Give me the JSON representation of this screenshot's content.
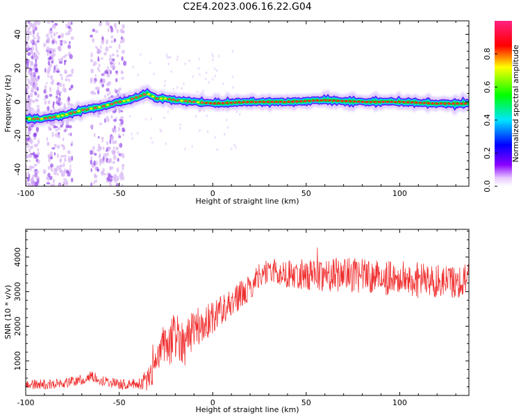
{
  "title": "C2E4.2023.006.16.22.G04",
  "colors": {
    "snr_line": "#f03030",
    "axis": "#000000",
    "scatter_light": "#d9b8f5",
    "scatter_dark": "#7a1fe6",
    "colorbar_stops": [
      "#ffffff",
      "#e9c8ff",
      "#8a00ff",
      "#0000ff",
      "#00e5ff",
      "#00ff00",
      "#ffff00",
      "#ff0000",
      "#ff2080"
    ]
  },
  "chart_data": [
    {
      "type": "heatmap",
      "xlabel": "Height of straight line (km)",
      "ylabel": "Frequency (Hz)",
      "xlim": [
        -100,
        137
      ],
      "ylim": [
        -50,
        48
      ],
      "xticks": [
        -100,
        -50,
        0,
        50,
        100
      ],
      "yticks": [
        -40,
        -20,
        0,
        20,
        40
      ],
      "grid": false,
      "colorbar": {
        "label": "Normalized spectral amplitude",
        "range": [
          0,
          1
        ],
        "ticks": [
          0.0,
          0.2,
          0.4,
          0.6,
          0.8
        ]
      },
      "ridge": {
        "x": [
          -100,
          -90,
          -80,
          -70,
          -60,
          -50,
          -45,
          -40,
          -35,
          -30,
          -25,
          -20,
          -10,
          0,
          20,
          40,
          60,
          80,
          100,
          120,
          137
        ],
        "frequency": [
          -10,
          -10,
          -8,
          -5,
          -3,
          0,
          1,
          3,
          5,
          2,
          2,
          1,
          0,
          -1,
          0,
          0,
          1,
          0,
          0,
          -1,
          -1
        ]
      },
      "scatter_bands_x": [
        [
          -100,
          -93
        ],
        [
          -90,
          -75
        ],
        [
          -65,
          -47
        ]
      ]
    },
    {
      "type": "line",
      "xlabel": "Height of straight line (km)",
      "ylabel": "SNR (10 * v/v)",
      "xlim": [
        -100,
        137
      ],
      "ylim": [
        0,
        4800
      ],
      "xticks": [
        -100,
        -50,
        0,
        50,
        100
      ],
      "yticks": [
        1000,
        2000,
        3000,
        4000
      ],
      "grid": false,
      "trend": {
        "x": [
          -100,
          -90,
          -80,
          -70,
          -65,
          -60,
          -50,
          -40,
          -35,
          -30,
          -27,
          -25,
          -20,
          -15,
          -10,
          -5,
          0,
          5,
          10,
          15,
          20,
          25,
          30,
          40,
          50,
          60,
          70,
          80,
          90,
          100,
          110,
          120,
          130,
          137
        ],
        "y": [
          300,
          320,
          350,
          450,
          550,
          450,
          320,
          330,
          450,
          900,
          1500,
          1300,
          1800,
          1500,
          2000,
          2000,
          2300,
          2500,
          2700,
          2900,
          3100,
          3500,
          3600,
          3500,
          3500,
          3500,
          3500,
          3450,
          3400,
          3400,
          3350,
          3300,
          3300,
          3350
        ]
      },
      "noise_amplitude": {
        "x": [
          -100,
          -40,
          -30,
          -20,
          0,
          25,
          60,
          137
        ],
        "y": [
          150,
          150,
          500,
          700,
          500,
          350,
          500,
          500
        ]
      }
    }
  ]
}
